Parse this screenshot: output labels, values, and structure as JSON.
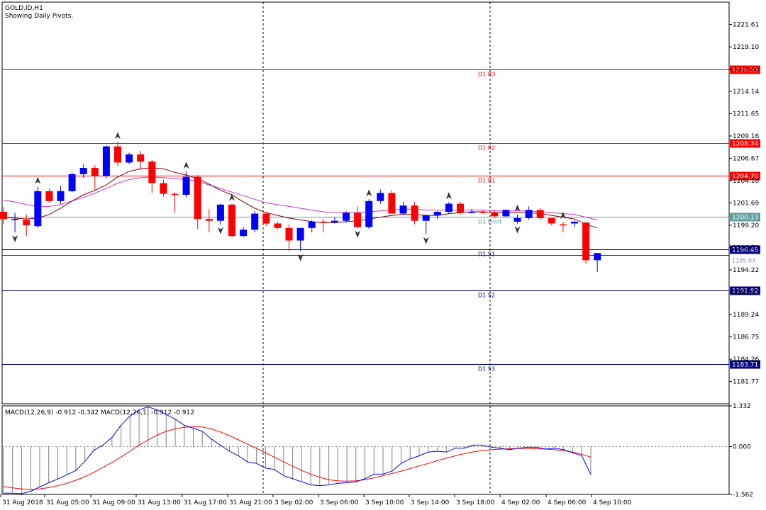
{
  "header": {
    "symbol": "GOLD.ID,H1",
    "subtitle": "Showing Daily Pivots."
  },
  "colors": {
    "up": "#0000ff",
    "down": "#ff0000",
    "ma_fast": "#800000",
    "ma_slow": "#cc33cc",
    "resistance": "#ff0000",
    "support": "#000080",
    "pivot": "#5f9ea0",
    "macd_line": "#0000ff",
    "signal_line": "#ff0000",
    "histogram": "#808080",
    "grid": "#000000"
  },
  "chart_data": [
    {
      "type": "candlestick",
      "title": "GOLD.ID,H1",
      "subtitle": "Showing Daily Pivots.",
      "ylim": [
        1179.29,
        1224.09
      ],
      "y_ticks": [
        "1221.61",
        "1219.10",
        "1216.60",
        "1214.14",
        "1211.65",
        "1209.16",
        "1206.67",
        "1204.18",
        "1201.69",
        "1199.20",
        "1196.71",
        "1194.22",
        "1191.73",
        "1189.24",
        "1186.75",
        "1184.26",
        "1181.77"
      ],
      "x_ticks": [
        "31 Aug 2018",
        "31 Aug 05:00",
        "31 Aug 09:00",
        "31 Aug 13:00",
        "31 Aug 17:00",
        "31 Aug 21:00",
        "3 Sep 02:00",
        "3 Sep 06:00",
        "3 Sep 10:00",
        "3 Sep 14:00",
        "3 Sep 18:00",
        "4 Sep 02:00",
        "4 Sep 06:00",
        "4 Sep 10:00"
      ],
      "session_breaks": [
        "31 Aug 21:00",
        "3 Sep 18:00"
      ],
      "pivot_levels": [
        {
          "name": "D1 R3",
          "value": 1216.55,
          "label": "1216.55",
          "kind": "resistance"
        },
        {
          "name": "D1 R2",
          "value": 1208.34,
          "label": "1208.34",
          "kind": "resistance"
        },
        {
          "name": "D1 R1",
          "value": 1204.7,
          "label": "1204.70",
          "kind": "resistance"
        },
        {
          "name": "D1 Pivot",
          "value": 1200.13,
          "label": "1200.13",
          "kind": "pivot"
        },
        {
          "name": "D1 S1",
          "value": 1196.49,
          "label": "1196.49",
          "kind": "support"
        },
        {
          "name": "D1 S2",
          "value": 1191.92,
          "label": "1191.92",
          "kind": "support"
        },
        {
          "name": "D1 S3",
          "value": 1183.71,
          "label": "1183.71",
          "kind": "support"
        }
      ],
      "extra_price_line": {
        "value": 1195.9,
        "label": "1195.93"
      },
      "candles": [
        {
          "o": 1200.7,
          "h": 1201.2,
          "c": 1199.9,
          "l": 1199.3
        },
        {
          "o": 1199.9,
          "h": 1200.6,
          "c": 1199.9,
          "l": 1198.4
        },
        {
          "o": 1199.8,
          "h": 1200.4,
          "c": 1199.2,
          "l": 1198.0
        },
        {
          "o": 1199.1,
          "h": 1203.5,
          "c": 1203.0,
          "l": 1198.9
        },
        {
          "o": 1203.0,
          "h": 1203.3,
          "c": 1201.9,
          "l": 1201.7
        },
        {
          "o": 1201.9,
          "h": 1203.6,
          "c": 1203.0,
          "l": 1201.6
        },
        {
          "o": 1203.0,
          "h": 1205.1,
          "c": 1204.9,
          "l": 1202.9
        },
        {
          "o": 1204.9,
          "h": 1206.0,
          "c": 1205.6,
          "l": 1204.5
        },
        {
          "o": 1205.6,
          "h": 1205.9,
          "c": 1204.7,
          "l": 1203.1
        },
        {
          "o": 1204.7,
          "h": 1208.1,
          "c": 1208.0,
          "l": 1204.4
        },
        {
          "o": 1208.0,
          "h": 1208.5,
          "c": 1206.2,
          "l": 1205.8
        },
        {
          "o": 1206.2,
          "h": 1207.3,
          "c": 1207.1,
          "l": 1206.0
        },
        {
          "o": 1207.1,
          "h": 1207.5,
          "c": 1206.3,
          "l": 1205.4
        },
        {
          "o": 1206.3,
          "h": 1206.5,
          "c": 1203.9,
          "l": 1202.8
        },
        {
          "o": 1203.9,
          "h": 1204.3,
          "c": 1202.7,
          "l": 1202.4
        },
        {
          "o": 1202.7,
          "h": 1202.9,
          "c": 1202.6,
          "l": 1200.6
        },
        {
          "o": 1202.6,
          "h": 1205.2,
          "c": 1204.6,
          "l": 1202.3
        },
        {
          "o": 1204.6,
          "h": 1204.8,
          "c": 1199.9,
          "l": 1198.8
        },
        {
          "o": 1199.9,
          "h": 1201.0,
          "c": 1199.7,
          "l": 1198.4
        },
        {
          "o": 1199.7,
          "h": 1201.6,
          "c": 1201.5,
          "l": 1199.3
        },
        {
          "o": 1201.5,
          "h": 1201.6,
          "c": 1198.0,
          "l": 1197.9
        },
        {
          "o": 1198.0,
          "h": 1199.0,
          "c": 1198.7,
          "l": 1197.9
        },
        {
          "o": 1198.7,
          "h": 1200.8,
          "c": 1200.5,
          "l": 1198.4
        },
        {
          "o": 1200.5,
          "h": 1200.7,
          "c": 1199.4,
          "l": 1199.1
        },
        {
          "o": 1199.4,
          "h": 1199.6,
          "c": 1198.9,
          "l": 1198.7
        },
        {
          "o": 1198.9,
          "h": 1199.3,
          "c": 1197.5,
          "l": 1196.3
        },
        {
          "o": 1197.5,
          "h": 1198.9,
          "c": 1198.9,
          "l": 1196.3
        },
        {
          "o": 1198.9,
          "h": 1199.8,
          "c": 1199.6,
          "l": 1198.4
        },
        {
          "o": 1199.6,
          "h": 1199.9,
          "c": 1199.5,
          "l": 1198.4
        },
        {
          "o": 1199.5,
          "h": 1200.1,
          "c": 1199.7,
          "l": 1199.4
        },
        {
          "o": 1199.7,
          "h": 1200.8,
          "c": 1200.6,
          "l": 1199.5
        },
        {
          "o": 1200.6,
          "h": 1201.3,
          "c": 1199.0,
          "l": 1198.9
        },
        {
          "o": 1199.0,
          "h": 1202.1,
          "c": 1201.9,
          "l": 1198.8
        },
        {
          "o": 1201.9,
          "h": 1203.2,
          "c": 1202.8,
          "l": 1201.6
        },
        {
          "o": 1202.8,
          "h": 1203.1,
          "c": 1200.5,
          "l": 1200.5
        },
        {
          "o": 1200.5,
          "h": 1201.8,
          "c": 1201.4,
          "l": 1200.4
        },
        {
          "o": 1201.4,
          "h": 1201.8,
          "c": 1199.7,
          "l": 1199.3
        },
        {
          "o": 1199.7,
          "h": 1200.4,
          "c": 1200.3,
          "l": 1198.2
        },
        {
          "o": 1200.3,
          "h": 1200.8,
          "c": 1200.7,
          "l": 1199.9
        },
        {
          "o": 1200.7,
          "h": 1201.8,
          "c": 1201.6,
          "l": 1200.5
        },
        {
          "o": 1201.6,
          "h": 1201.8,
          "c": 1200.6,
          "l": 1200.4
        },
        {
          "o": 1200.6,
          "h": 1201.0,
          "c": 1200.7,
          "l": 1200.5
        },
        {
          "o": 1200.7,
          "h": 1200.9,
          "c": 1200.6,
          "l": 1200.5
        },
        {
          "o": 1200.6,
          "h": 1200.9,
          "c": 1200.2,
          "l": 1200.0
        },
        {
          "o": 1200.2,
          "h": 1201.0,
          "c": 1200.9,
          "l": 1200.1
        },
        {
          "o": 1199.6,
          "h": 1200.4,
          "c": 1200.0,
          "l": 1199.4
        },
        {
          "o": 1200.0,
          "h": 1201.3,
          "c": 1200.9,
          "l": 1199.8
        },
        {
          "o": 1200.9,
          "h": 1201.1,
          "c": 1200.0,
          "l": 1199.8
        },
        {
          "o": 1200.0,
          "h": 1200.0,
          "c": 1199.4,
          "l": 1199.2
        },
        {
          "o": 1199.3,
          "h": 1199.6,
          "c": 1199.2,
          "l": 1198.4
        },
        {
          "o": 1199.4,
          "h": 1199.7,
          "c": 1199.6,
          "l": 1199.0
        },
        {
          "o": 1199.5,
          "h": 1199.5,
          "c": 1195.3,
          "l": 1194.9
        },
        {
          "o": 1195.3,
          "h": 1196.1,
          "c": 1196.1,
          "l": 1194.0
        }
      ],
      "ma_fast": [
        1200.1,
        1200.0,
        1199.9,
        1200.0,
        1200.4,
        1201.1,
        1201.9,
        1202.6,
        1203.1,
        1203.7,
        1204.6,
        1205.2,
        1205.5,
        1205.6,
        1205.5,
        1205.1,
        1204.8,
        1204.4,
        1203.8,
        1203.1,
        1202.6,
        1201.8,
        1201.1,
        1200.6,
        1200.3,
        1200.0,
        1199.8,
        1199.6,
        1199.5,
        1199.5,
        1199.6,
        1199.7,
        1199.9,
        1200.1,
        1200.3,
        1200.4,
        1200.4,
        1200.3,
        1200.3,
        1200.5,
        1200.6,
        1200.7,
        1200.7,
        1200.6,
        1200.6,
        1200.6,
        1200.6,
        1200.5,
        1200.3,
        1200.1,
        1199.9,
        1199.3,
        1198.9
      ],
      "ma_slow": [
        1202.0,
        1201.8,
        1201.5,
        1201.3,
        1201.3,
        1201.5,
        1201.9,
        1202.3,
        1202.8,
        1203.3,
        1203.9,
        1204.3,
        1204.5,
        1204.6,
        1204.5,
        1204.4,
        1204.3,
        1204.1,
        1203.7,
        1203.3,
        1202.9,
        1202.5,
        1202.1,
        1201.7,
        1201.5,
        1201.3,
        1201.1,
        1200.9,
        1200.7,
        1200.6,
        1200.6,
        1200.6,
        1200.7,
        1200.8,
        1200.9,
        1201.0,
        1201.0,
        1200.9,
        1200.9,
        1200.9,
        1200.9,
        1200.9,
        1200.9,
        1200.8,
        1200.8,
        1200.8,
        1200.8,
        1200.7,
        1200.6,
        1200.5,
        1200.4,
        1200.1,
        1199.8
      ]
    },
    {
      "type": "line",
      "title": "MACD(12,26,9) -0.912 -0.342 MACD(12,26,1) -0.912 -0.912",
      "ylim": [
        -1.562,
        1.332
      ],
      "y_ticks": [
        "1.332",
        "0.000",
        "-1.562"
      ],
      "series": [
        {
          "name": "MACD",
          "values": [
            -1.52,
            -1.52,
            -1.54,
            -1.46,
            -1.32,
            -1.18,
            -1.06,
            -0.92,
            -0.78,
            -0.48,
            -0.12,
            0.05,
            0.3,
            0.7,
            1.0,
            1.2,
            1.3,
            1.2,
            1.05,
            0.9,
            0.7,
            0.6,
            0.5,
            0.25,
            0.05,
            -0.15,
            -0.3,
            -0.5,
            -0.55,
            -0.7,
            -0.75,
            -0.95,
            -1.05,
            -1.15,
            -1.25,
            -1.28,
            -1.25,
            -1.2,
            -1.18,
            -1.15,
            -1.05,
            -0.9,
            -0.9,
            -0.8,
            -0.55,
            -0.4,
            -0.3,
            -0.18,
            -0.15,
            -0.18,
            -0.05,
            -0.05,
            0.05,
            0.05,
            -0.02,
            -0.05,
            -0.1,
            -0.05,
            -0.02,
            -0.02,
            -0.08,
            -0.05,
            -0.1,
            -0.2,
            -0.3,
            -0.912
          ]
        },
        {
          "name": "Signal",
          "values": [
            -1.3,
            -1.35,
            -1.38,
            -1.4,
            -1.38,
            -1.34,
            -1.28,
            -1.2,
            -1.1,
            -0.98,
            -0.84,
            -0.68,
            -0.52,
            -0.34,
            -0.15,
            0.05,
            0.22,
            0.38,
            0.5,
            0.58,
            0.63,
            0.65,
            0.64,
            0.58,
            0.48,
            0.36,
            0.22,
            0.08,
            -0.06,
            -0.2,
            -0.35,
            -0.5,
            -0.64,
            -0.78,
            -0.9,
            -1.0,
            -1.08,
            -1.12,
            -1.13,
            -1.12,
            -1.08,
            -1.02,
            -0.95,
            -0.88,
            -0.8,
            -0.72,
            -0.63,
            -0.55,
            -0.46,
            -0.38,
            -0.3,
            -0.23,
            -0.17,
            -0.13,
            -0.1,
            -0.08,
            -0.07,
            -0.06,
            -0.06,
            -0.07,
            -0.08,
            -0.1,
            -0.13,
            -0.18,
            -0.25,
            -0.342
          ]
        }
      ]
    }
  ]
}
